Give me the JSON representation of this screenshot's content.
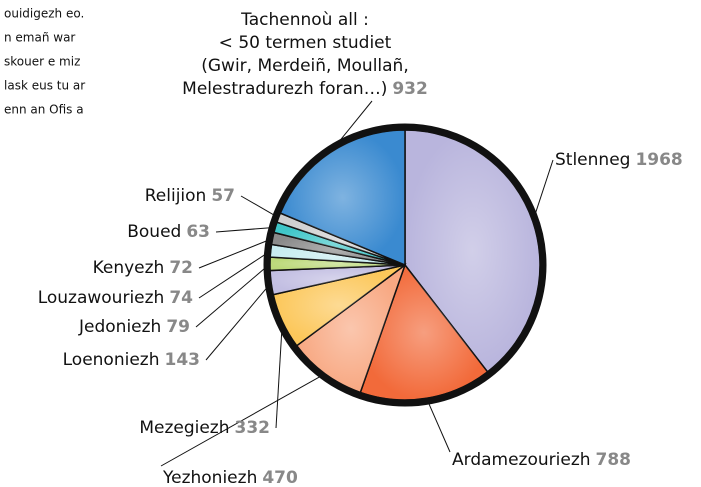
{
  "text_fragments": [
    "ouidigezh eo.",
    "n emañ war",
    "skouer e miz",
    "lask eus tu ar",
    "enn an Ofis a"
  ],
  "chart_data": {
    "type": "pie",
    "categories": [
      "Stlenneg",
      "Ardamezouriezh",
      "Yezhoniezh",
      "Mezegiezh",
      "Loenoniezh",
      "Jedoniezh",
      "Louzawouriezh",
      "Kenyezh",
      "Boued",
      "Relijion",
      "Tachennoù all :\n< 50 termen studiet\n(Gwir, Merdeiñ, Moullañ,\nMelestradurezh foran…)"
    ],
    "values": [
      1968,
      788,
      470,
      332,
      143,
      79,
      74,
      72,
      63,
      57,
      932
    ],
    "colors": [
      "#b9b5dd",
      "#f26a3a",
      "#f8a882",
      "#fcc75a",
      "#c2bee2",
      "#bcd97a",
      "#c8ecf0",
      "#8a8a8a",
      "#3fc6c8",
      "#cfcfcf",
      "#3a8ad0"
    ]
  }
}
